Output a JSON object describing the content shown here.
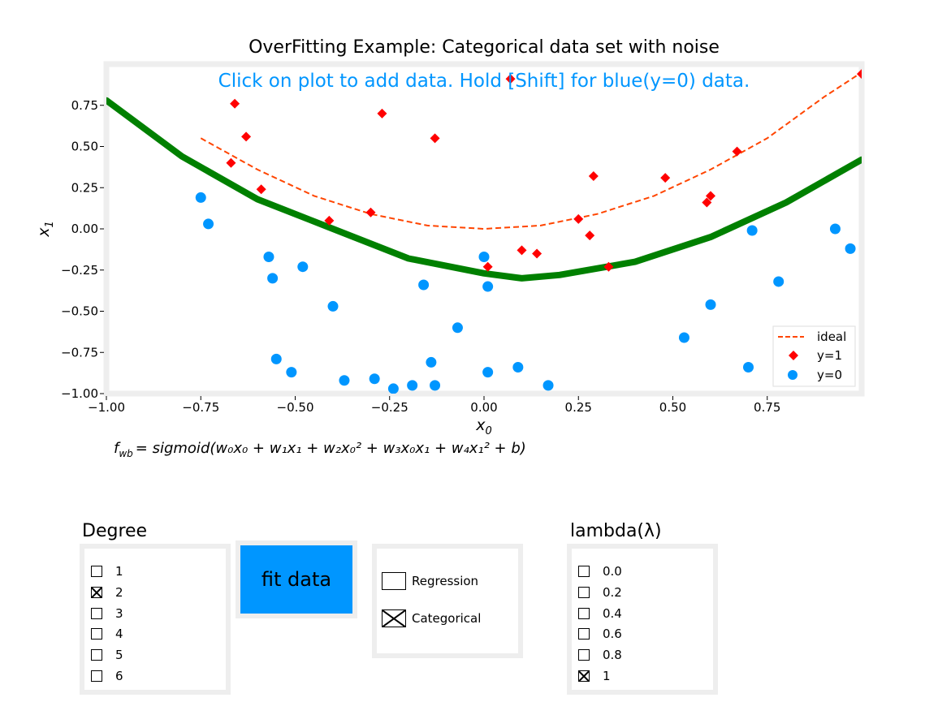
{
  "chart_data": {
    "type": "scatter",
    "title": "OverFitting Example: Categorical data set with noise",
    "annotation": "Click on plot to add data. Hold [Shift] for blue(y=0) data.",
    "xlabel_base": "x",
    "xlabel_sub": "0",
    "ylabel_base": "x",
    "ylabel_sub": "1",
    "xlim": [
      -1.0,
      1.0
    ],
    "ylim": [
      -1.0,
      1.0
    ],
    "xticks": [
      "−1.00",
      "−0.75",
      "−0.50",
      "−0.25",
      "0.00",
      "0.25",
      "0.50",
      "0.75"
    ],
    "yticks": [
      "−1.00",
      "−0.75",
      "−0.50",
      "−0.25",
      "0.00",
      "0.25",
      "0.50",
      "0.75"
    ],
    "grid": false,
    "legend_position": "lower-right",
    "series": [
      {
        "name": "ideal",
        "kind": "dashed-line",
        "color": "#ff4500",
        "x": [
          -0.75,
          -0.6,
          -0.45,
          -0.3,
          -0.15,
          0.0,
          0.15,
          0.3,
          0.45,
          0.6,
          0.75,
          0.9,
          1.0
        ],
        "y": [
          0.55,
          0.36,
          0.2,
          0.09,
          0.02,
          0.0,
          0.02,
          0.09,
          0.2,
          0.36,
          0.55,
          0.8,
          0.95
        ]
      },
      {
        "name": "y=1",
        "kind": "diamond",
        "color": "#ff0000",
        "points": [
          [
            -0.67,
            0.4
          ],
          [
            -0.66,
            0.76
          ],
          [
            -0.63,
            0.56
          ],
          [
            -0.59,
            0.24
          ],
          [
            -0.41,
            0.05
          ],
          [
            -0.3,
            0.1
          ],
          [
            -0.27,
            0.7
          ],
          [
            -0.13,
            0.55
          ],
          [
            0.01,
            -0.23
          ],
          [
            0.07,
            0.91
          ],
          [
            0.1,
            -0.13
          ],
          [
            0.14,
            -0.15
          ],
          [
            0.25,
            0.06
          ],
          [
            0.28,
            -0.04
          ],
          [
            0.29,
            0.32
          ],
          [
            0.33,
            -0.23
          ],
          [
            0.48,
            0.31
          ],
          [
            0.59,
            0.16
          ],
          [
            0.6,
            0.2
          ],
          [
            0.67,
            0.47
          ],
          [
            1.0,
            0.94
          ]
        ]
      },
      {
        "name": "y=0",
        "kind": "circle",
        "color": "#0096ff",
        "points": [
          [
            -0.75,
            0.19
          ],
          [
            -0.73,
            0.03
          ],
          [
            -0.57,
            -0.17
          ],
          [
            -0.56,
            -0.3
          ],
          [
            -0.55,
            -0.79
          ],
          [
            -0.51,
            -0.87
          ],
          [
            -0.48,
            -0.23
          ],
          [
            -0.4,
            -0.47
          ],
          [
            -0.37,
            -0.92
          ],
          [
            -0.29,
            -0.91
          ],
          [
            -0.24,
            -0.97
          ],
          [
            -0.19,
            -0.95
          ],
          [
            -0.16,
            -0.34
          ],
          [
            -0.14,
            -0.81
          ],
          [
            -0.13,
            -0.95
          ],
          [
            -0.07,
            -0.6
          ],
          [
            0.0,
            -0.17
          ],
          [
            0.01,
            -0.35
          ],
          [
            0.01,
            -0.87
          ],
          [
            0.09,
            -0.84
          ],
          [
            0.17,
            -0.95
          ],
          [
            0.53,
            -0.66
          ],
          [
            0.6,
            -0.46
          ],
          [
            0.7,
            -0.84
          ],
          [
            0.71,
            -0.01
          ],
          [
            0.78,
            -0.32
          ],
          [
            0.93,
            0.0
          ],
          [
            0.95,
            -0.77
          ],
          [
            0.97,
            -0.12
          ]
        ]
      },
      {
        "name": "",
        "kind": "boundary",
        "color": "#008000",
        "x": [
          -1.0,
          -0.8,
          -0.6,
          -0.4,
          -0.2,
          0.0,
          0.1,
          0.2,
          0.4,
          0.6,
          0.8,
          1.0
        ],
        "y": [
          0.78,
          0.44,
          0.18,
          0.0,
          -0.18,
          -0.27,
          -0.3,
          -0.28,
          -0.2,
          -0.05,
          0.16,
          0.42
        ]
      }
    ]
  },
  "formula": {
    "lhs_base": "f",
    "lhs_sub": "wb",
    "rhs": "= sigmoid(w₀x₀ + w₁x₁ + w₂x₀² + w₃x₀x₁ + w₄x₁² + b)"
  },
  "degree": {
    "heading": "Degree",
    "options": [
      {
        "label": "1",
        "checked": false
      },
      {
        "label": "2",
        "checked": true
      },
      {
        "label": "3",
        "checked": false
      },
      {
        "label": "4",
        "checked": false
      },
      {
        "label": "5",
        "checked": false
      },
      {
        "label": "6",
        "checked": false
      }
    ]
  },
  "fit_button": {
    "label": "fit data",
    "color": "#0096ff"
  },
  "mode": {
    "options": [
      {
        "label": "Regression",
        "checked": false
      },
      {
        "label": "Categorical",
        "checked": true
      }
    ]
  },
  "lambda": {
    "heading": "lambda(λ)",
    "options": [
      {
        "label": "0.0",
        "checked": false
      },
      {
        "label": "0.2",
        "checked": false
      },
      {
        "label": "0.4",
        "checked": false
      },
      {
        "label": "0.6",
        "checked": false
      },
      {
        "label": "0.8",
        "checked": false
      },
      {
        "label": "1",
        "checked": true
      }
    ]
  }
}
